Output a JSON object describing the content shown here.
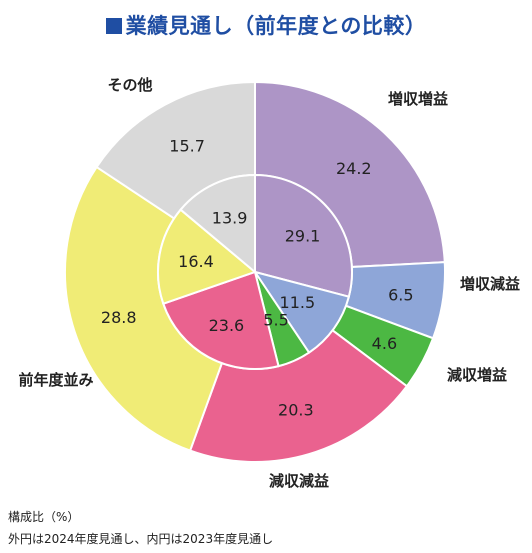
{
  "title": "業績見通し（前年度との比較）",
  "chart_data": {
    "type": "pie",
    "subtype": "nested-donut",
    "unit": "構成比（%）",
    "outer_label": "外円は2024年度見通し",
    "inner_label": "内円は2023年度見通し",
    "categories": [
      "増収増益",
      "増収減益",
      "減収増益",
      "減収減益",
      "前年度並み",
      "その他"
    ],
    "colors": [
      "#ad95c6",
      "#8ea6d8",
      "#4cb843",
      "#ea628f",
      "#f0ec76",
      "#d9d9d9"
    ],
    "series": [
      {
        "name": "2024年度見通し",
        "ring": "outer",
        "values": [
          24.2,
          6.5,
          4.6,
          20.3,
          28.8,
          15.7
        ]
      },
      {
        "name": "2023年度見通し",
        "ring": "inner",
        "values": [
          29.1,
          11.5,
          5.5,
          23.6,
          16.4,
          13.9
        ]
      }
    ]
  },
  "footnote": {
    "line1": "構成比（%）",
    "line2": "外円は2024年度見通し、内円は2023年度見通し"
  }
}
